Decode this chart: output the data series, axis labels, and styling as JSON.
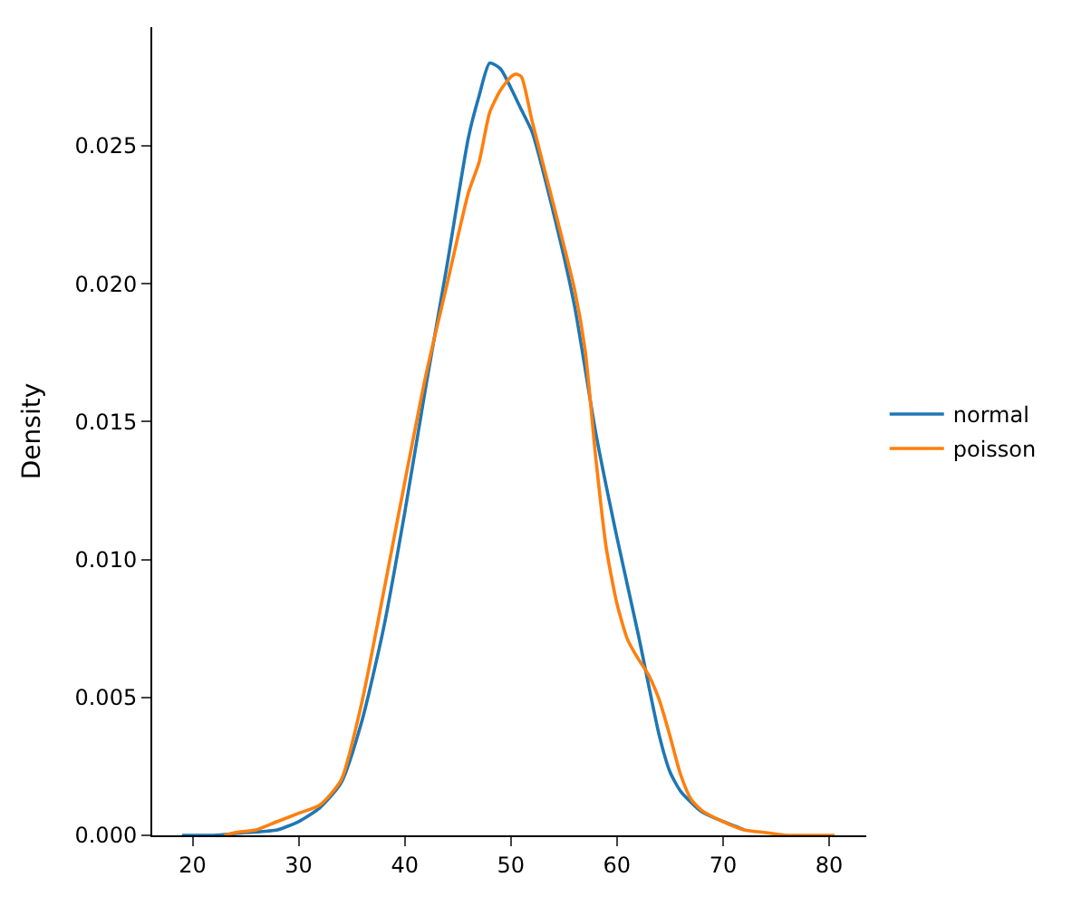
{
  "chart_data": {
    "type": "line",
    "ylabel": "Density",
    "xlim": [
      16.2,
      83.5
    ],
    "ylim": [
      0,
      0.0293
    ],
    "xticks": [
      20,
      30,
      40,
      50,
      60,
      70,
      80
    ],
    "yticks": [
      {
        "value": 0,
        "label": "0.000"
      },
      {
        "value": 0.005,
        "label": "0.005"
      },
      {
        "value": 0.01,
        "label": "0.010"
      },
      {
        "value": 0.015,
        "label": "0.015"
      },
      {
        "value": 0.02,
        "label": "0.020"
      },
      {
        "value": 0.025,
        "label": "0.025"
      }
    ],
    "legend": "right",
    "marker": "none",
    "line_style": "solid",
    "series": [
      {
        "name": "normal",
        "color": "#1f77b4",
        "x": [
          19,
          22,
          25,
          28,
          30,
          32,
          34,
          36,
          38,
          40,
          42,
          44,
          46,
          47,
          48,
          49,
          50,
          51,
          52,
          54,
          56,
          58,
          60,
          62,
          64,
          65,
          66,
          68,
          70,
          72
        ],
        "values": [
          0,
          0,
          0.0001,
          0.0002,
          0.0005,
          0.001,
          0.0019,
          0.0042,
          0.0075,
          0.0117,
          0.0163,
          0.0207,
          0.0253,
          0.0268,
          0.028,
          0.0278,
          0.0271,
          0.0263,
          0.0255,
          0.0226,
          0.0192,
          0.0146,
          0.0108,
          0.0073,
          0.0036,
          0.0023,
          0.0016,
          0.00085,
          0.0005,
          0.0002
        ]
      },
      {
        "name": "poisson",
        "color": "#ff7f0e",
        "x": [
          23,
          24,
          26,
          28,
          30,
          32,
          34,
          36,
          38,
          40,
          42,
          44,
          46,
          47,
          48,
          49,
          50,
          50.5,
          51,
          52,
          54,
          56,
          57,
          58,
          59,
          60,
          61,
          62,
          63,
          64,
          65,
          66,
          67,
          68,
          70,
          72,
          74,
          76,
          78,
          80.5
        ],
        "values": [
          0,
          0.0001,
          0.0002,
          0.0005,
          0.0008,
          0.0011,
          0.002,
          0.0049,
          0.0088,
          0.0128,
          0.0167,
          0.02,
          0.0233,
          0.0244,
          0.0262,
          0.027,
          0.0275,
          0.0276,
          0.0275,
          0.0259,
          0.0229,
          0.0198,
          0.0176,
          0.0137,
          0.0104,
          0.0084,
          0.0071,
          0.0064,
          0.0058,
          0.0049,
          0.0036,
          0.0022,
          0.0013,
          0.0009,
          0.0005,
          0.0002,
          0.0001,
          0,
          0,
          0
        ]
      }
    ]
  }
}
